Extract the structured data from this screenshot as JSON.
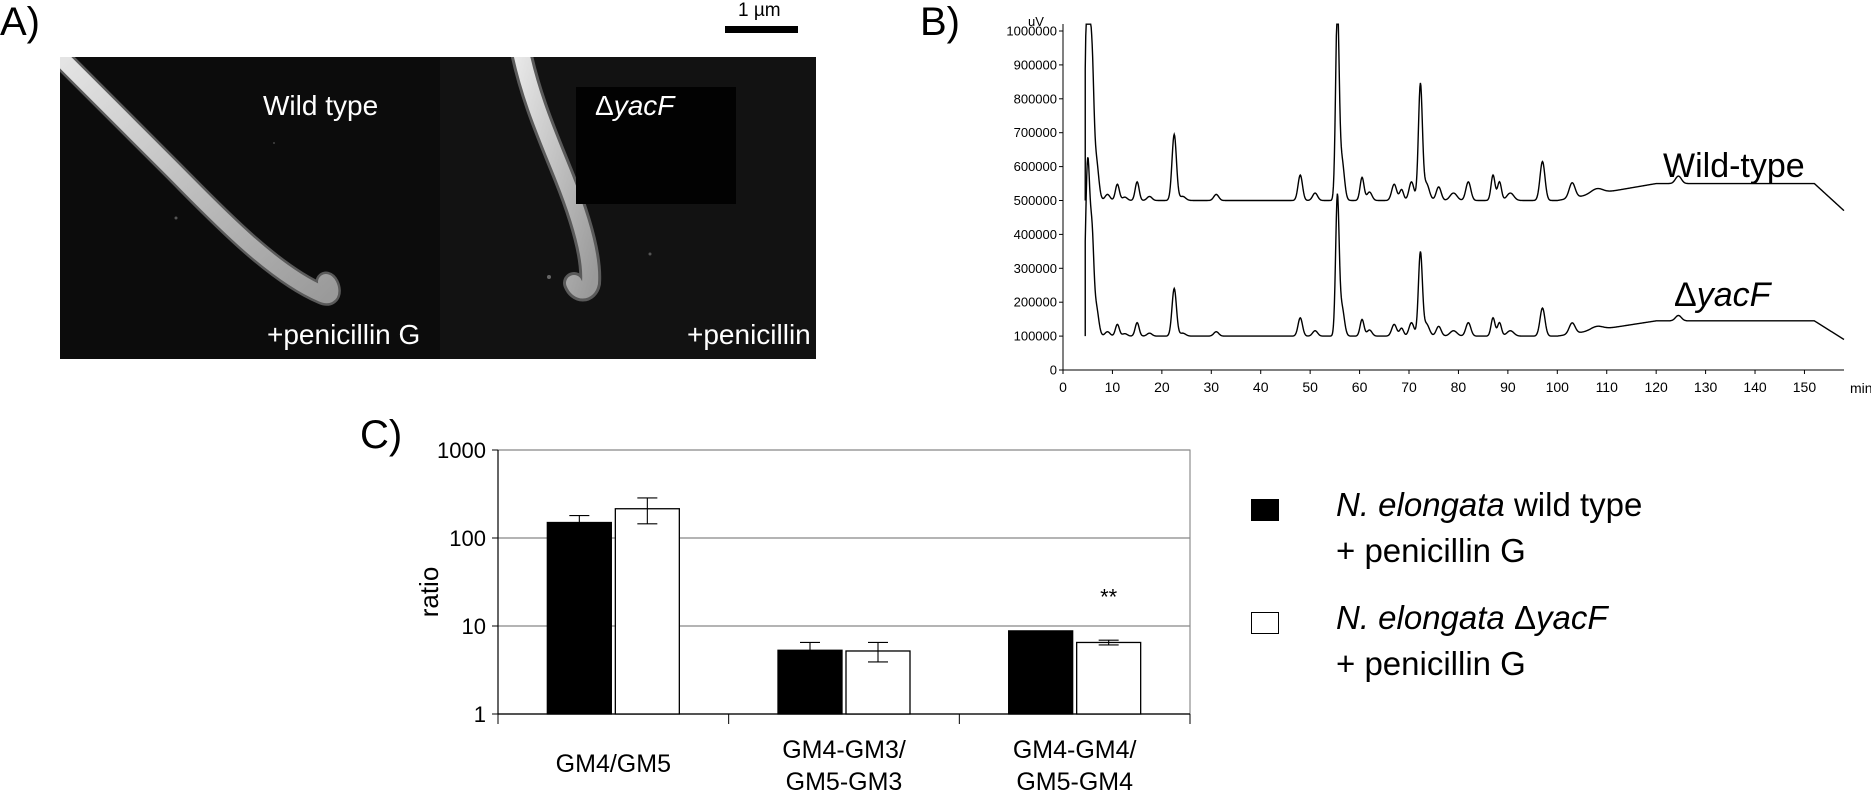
{
  "panels": {
    "a": {
      "label": "A)"
    },
    "b": {
      "label": "B)"
    },
    "c": {
      "label": "C)"
    }
  },
  "sem": {
    "scale_bar_label": "1 µm",
    "left": {
      "title": "Wild type",
      "treatment": "+penicillin G"
    },
    "right": {
      "title_prefix": "Δ",
      "title_gene": "yacF",
      "treatment": "+penicillin G"
    }
  },
  "chart_data": [
    {
      "type": "line",
      "panel": "B",
      "ylabel": "uV",
      "xlabel": "min",
      "xlim": [
        0,
        158
      ],
      "ylim": [
        0,
        1000000
      ],
      "x_ticks": [
        0,
        10,
        20,
        30,
        40,
        50,
        60,
        70,
        80,
        90,
        100,
        110,
        120,
        130,
        140,
        150
      ],
      "y_ticks": [
        0,
        100000,
        200000,
        300000,
        400000,
        500000,
        600000,
        700000,
        800000,
        900000,
        1000000
      ],
      "series_labels": [
        {
          "text": "Wild-type"
        },
        {
          "text_prefix": "Δ",
          "text_gene": "yacF"
        }
      ],
      "baselines": [
        500000,
        100000
      ],
      "end_decay": [
        [
          152,
          550000,
          100000
        ],
        [
          158,
          470000,
          90000
        ]
      ],
      "peaks": [
        {
          "x": 5.0,
          "h": 720000,
          "w": 0.45
        },
        {
          "x": 5.9,
          "h": 330000,
          "w": 0.35
        },
        {
          "x": 6.7,
          "h": 120000,
          "w": 0.5
        },
        {
          "x": 9.0,
          "h": 18000,
          "w": 0.5
        },
        {
          "x": 11.0,
          "h": 48000,
          "w": 0.4
        },
        {
          "x": 12.5,
          "h": 10000,
          "w": 0.5
        },
        {
          "x": 15.0,
          "h": 55000,
          "w": 0.4
        },
        {
          "x": 17.5,
          "h": 12000,
          "w": 0.5
        },
        {
          "x": 22.5,
          "h": 195000,
          "w": 0.45
        },
        {
          "x": 24.2,
          "h": 12000,
          "w": 0.6
        },
        {
          "x": 31.0,
          "h": 18000,
          "w": 0.5
        },
        {
          "x": 48.0,
          "h": 75000,
          "w": 0.45
        },
        {
          "x": 51.0,
          "h": 22000,
          "w": 0.5
        },
        {
          "x": 55.5,
          "h": 560000,
          "w": 0.35
        },
        {
          "x": 56.4,
          "h": 120000,
          "w": 0.5
        },
        {
          "x": 60.5,
          "h": 68000,
          "w": 0.4
        },
        {
          "x": 62.0,
          "h": 25000,
          "w": 0.5
        },
        {
          "x": 67.0,
          "h": 48000,
          "w": 0.5
        },
        {
          "x": 68.5,
          "h": 32000,
          "w": 0.4
        },
        {
          "x": 70.5,
          "h": 55000,
          "w": 0.5
        },
        {
          "x": 72.3,
          "h": 340000,
          "w": 0.4
        },
        {
          "x": 73.5,
          "h": 50000,
          "w": 0.6
        },
        {
          "x": 76.0,
          "h": 40000,
          "w": 0.5
        },
        {
          "x": 79.0,
          "h": 22000,
          "w": 0.7
        },
        {
          "x": 82.0,
          "h": 55000,
          "w": 0.5
        },
        {
          "x": 87.0,
          "h": 75000,
          "w": 0.4
        },
        {
          "x": 88.3,
          "h": 55000,
          "w": 0.4
        },
        {
          "x": 90.5,
          "h": 22000,
          "w": 0.7
        },
        {
          "x": 97.0,
          "h": 115000,
          "w": 0.5
        },
        {
          "x": 103.0,
          "h": 45000,
          "w": 0.6
        },
        {
          "x": 108.0,
          "h": 15000,
          "w": 1.2
        },
        {
          "x": 124.5,
          "h": 22000,
          "w": 0.6
        }
      ]
    },
    {
      "type": "bar",
      "panel": "C",
      "scale": "log",
      "ylabel": "ratio",
      "ylim": [
        1,
        1000
      ],
      "y_ticks": [
        "1",
        "10",
        "100",
        "1000"
      ],
      "grid": true,
      "categories": [
        [
          "GM4/GM5"
        ],
        [
          "GM4-GM3/",
          "GM5-GM3"
        ],
        [
          "GM4-GM4/",
          "GM5-GM4"
        ]
      ],
      "series": [
        {
          "name_species": "N. elongata",
          "name_suffix": " wild type",
          "name_line2": "+ penicillin G",
          "color": "#000000",
          "values": [
            150,
            5.3,
            8.8
          ],
          "errors": [
            30,
            1.2,
            0
          ]
        },
        {
          "name_species": "N. elongata",
          "name_suffix_prefix": " Δ",
          "name_gene": "yacF",
          "name_line2": "+ penicillin G",
          "color": "#ffffff",
          "values": [
            215,
            5.2,
            6.5
          ],
          "errors": [
            70,
            1.3,
            0.4
          ]
        }
      ],
      "annotations": [
        {
          "text": "**",
          "category": 2,
          "series": 1
        }
      ]
    }
  ]
}
